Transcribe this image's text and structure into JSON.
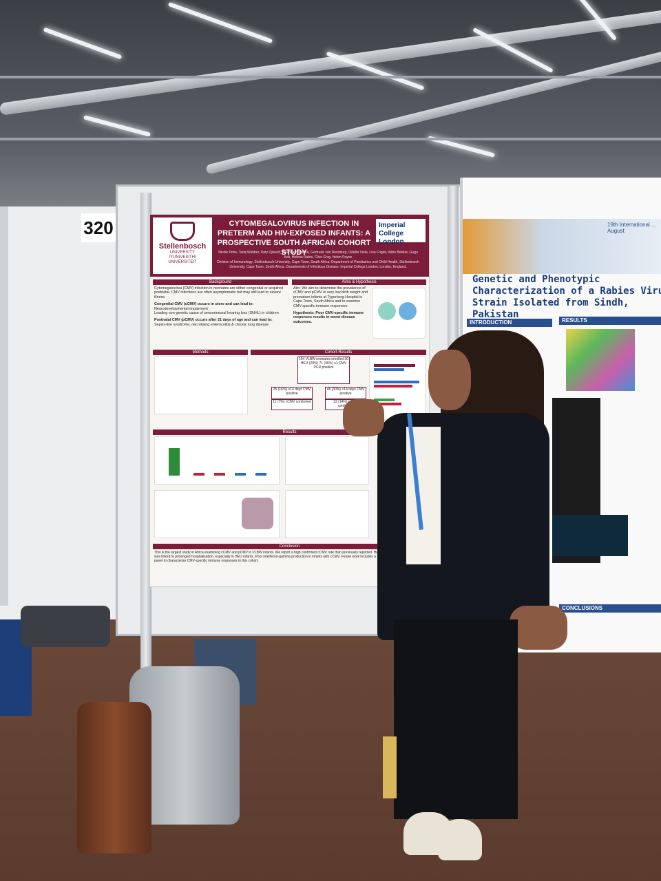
{
  "board": {
    "number": "320"
  },
  "poster": {
    "university_logo": {
      "name": "Stellenbosch",
      "sub": "UNIVERSITY\nIYUNIVESITHI\nUNIVERSITEIT"
    },
    "title": "CYTOMEGALOVIRUS INFECTION IN PRETERM AND HIV-EXPOSED INFANTS: A PROSPECTIVE SOUTH AFRICAN COHORT STUDY",
    "partner_logo": "Imperial College London",
    "authors": "Nicole Prins, Tariq Webber, Doty Ojwach, Awanda Ntshinka, Gertrude van Rensburg, Odette Viola, Lisa Frigati, Adrie Bekker, Gugu Kali, Helena Rabie, Clive Gray, Helen Payne",
    "affiliations": "Division of Immunology, Stellenbosch University, Cape Town, South Africa. Department of Paediatrics and Child Health, Stellenbosch University, Cape Town, South Africa. Departments of Infectious Disease, Imperial College London, London, England.",
    "sections": {
      "background": "Background",
      "aims": "Aims & Hypothesis",
      "methods": "Methods",
      "cohort": "Cohort Results",
      "results": "Results",
      "conclusion": "Conclusion"
    },
    "background_text": "Cytomegalovirus (CMV) infection in neonates are either congenital or acquired postnatal. CMV infections are often asymptomatic but may still lead to severe illness.",
    "congenital_head": "Congenital CMV (cCMV) occurs in utero and can lead to:",
    "congenital_items": [
      "Neurodevelopmental impairment",
      "Leading non-genetic cause of sensorineural hearing loss (SNHL) in children"
    ],
    "postnatal_head": "Postnatal CMV (pCMV) occurs after 21 days of age and can lead to:",
    "postnatal_items": [
      "Sepsis-like syndrome, necrotising enterocolitis & chronic lung disease"
    ],
    "aim_text": "Aim: We aim to determine the prevalence of cCMV and pCMV in very low birth weight and premature infants at Tygerberg Hospital in Cape Town, South Africa and to examine CMV-specific immune responses.",
    "hypothesis_text": "Hypothesis: Poor CMV-specific immune responses results in worst disease outcomes.",
    "cohort_box_main": "154 VLBW neonates enrolled 30 HEU (20%) 71 (46%) ≥1 CMV PCR positive",
    "cohort_box_left": "25 (16%) ≤14 days CMV positive",
    "cohort_box_left2": "11 (7%) cCMV confirmed",
    "cohort_box_right": "46 (30%) >14 days CMV positive",
    "cohort_box_right2": "22 (14%) pCMV confirmed",
    "conclusion_text": "This is the largest study in Africa examining cCMV and pCMV in VLBW infants. We report a high confirmed cCMV rate than previously reported. Higher CMV saliva viral load was linked to prolonged hospitalisation, especially in HEU infants. Poor interferon-gamma production in infants with cCMV. Future work includes a 20-parameter flow cytometry panel to characterize CMV-specific immune responses in this cohort."
  },
  "right_poster": {
    "title": "Genetic and Phenotypic Characterization of a Rabies Virus Strain Isolated from Sindh, Pakistan",
    "header_note": "19th International ... August",
    "introduction": "INTRODUCTION",
    "results": "RESULTS",
    "conclusions": "CONCLUSIONS"
  },
  "colors": {
    "stellenbosch_maroon": "#7b1d3a",
    "imperial_blue": "#0b2f6b",
    "rabies_blue": "#2a4f8f"
  }
}
